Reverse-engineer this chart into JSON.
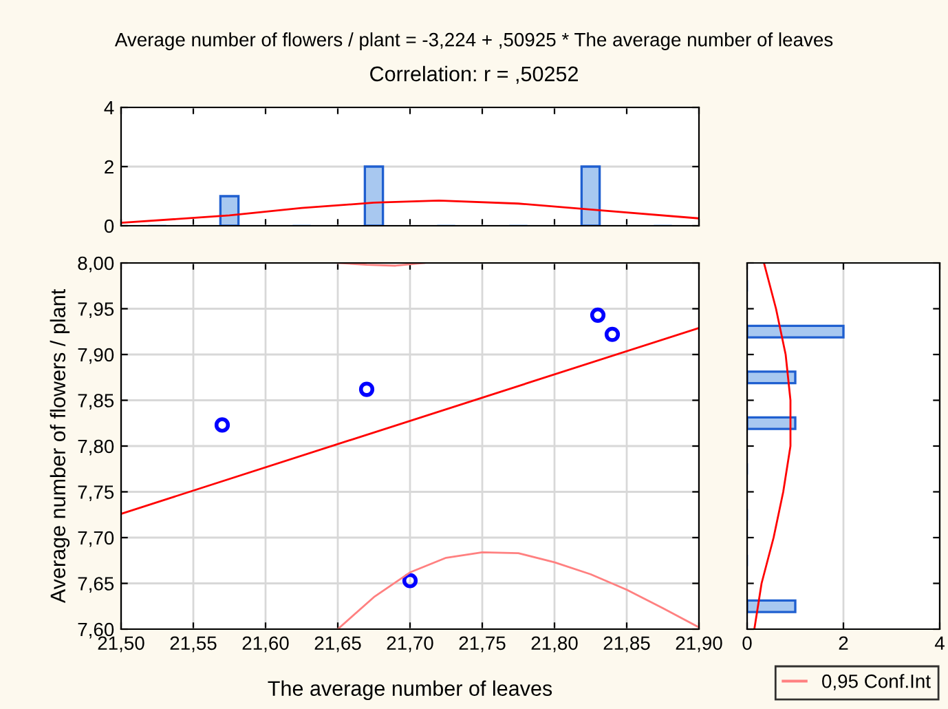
{
  "chart_data": [
    {
      "type": "histogram",
      "title": "Average number of flowers / plant = -3,224 + ,50925 * The average number of leaves",
      "subtitle": "Correlation: r = ,50252",
      "bins": [
        21.5,
        21.55,
        21.6,
        21.65,
        21.7,
        21.75,
        21.8,
        21.85,
        21.9
      ],
      "values": [
        0,
        1,
        0,
        2,
        0,
        0,
        2,
        0
      ],
      "color": "#a8c8f0",
      "series": [
        {
          "type": "line",
          "color": "#ff0000",
          "x": [
            21.5,
            21.575,
            21.625,
            21.675,
            21.72,
            21.775,
            21.825,
            21.9
          ],
          "values": [
            0.1,
            0.35,
            0.6,
            0.78,
            0.85,
            0.75,
            0.55,
            0.25
          ]
        }
      ],
      "xlim": [
        21.5,
        21.9
      ],
      "ylim": [
        0,
        4
      ],
      "yticks": [
        0,
        2,
        4
      ],
      "grid": "y",
      "tick_labels": "y"
    },
    {
      "type": "scatter",
      "xlabel": "The average number of leaves",
      "ylabel": "Average number of flowers / plant",
      "series": [
        {
          "type": "scatter",
          "color": "#0000ff",
          "marker": "circle",
          "x": [
            21.57,
            21.67,
            21.7,
            21.83,
            21.84
          ],
          "values": [
            7.823,
            7.862,
            7.653,
            7.943,
            7.922
          ]
        },
        {
          "type": "line",
          "color": "#ff0000",
          "x": [
            21.5,
            21.9
          ],
          "values": [
            7.726,
            7.929
          ]
        },
        {
          "type": "line",
          "name": "0,95 Conf.Int",
          "color": "#ff8080",
          "x": [
            21.65,
            21.675,
            21.7,
            21.725,
            21.75,
            21.775,
            21.8,
            21.825,
            21.85,
            21.875,
            21.9
          ],
          "values": [
            7.6,
            7.635,
            7.662,
            7.678,
            7.684,
            7.683,
            7.673,
            7.66,
            7.643,
            7.623,
            7.602
          ]
        },
        {
          "type": "line",
          "color": "#ff8080",
          "x": [
            21.65,
            21.67,
            21.69,
            21.71
          ],
          "values": [
            8.0,
            7.998,
            7.997,
            8.0
          ]
        }
      ],
      "xlim": [
        21.5,
        21.9
      ],
      "xticks": [
        {
          "value": 21.5,
          "label": "21,50"
        },
        {
          "value": 21.55,
          "label": "21,55"
        },
        {
          "value": 21.6,
          "label": "21,60"
        },
        {
          "value": 21.65,
          "label": "21,65"
        },
        {
          "value": 21.7,
          "label": "21,70"
        },
        {
          "value": 21.75,
          "label": "21,75"
        },
        {
          "value": 21.8,
          "label": "21,80"
        },
        {
          "value": 21.85,
          "label": "21,85"
        },
        {
          "value": 21.9,
          "label": "21,90"
        }
      ],
      "ylim": [
        7.6,
        8.0
      ],
      "yticks": [
        {
          "value": 7.6,
          "label": "7,60"
        },
        {
          "value": 7.65,
          "label": "7,65"
        },
        {
          "value": 7.7,
          "label": "7,70"
        },
        {
          "value": 7.75,
          "label": "7,75"
        },
        {
          "value": 7.8,
          "label": "7,80"
        },
        {
          "value": 7.85,
          "label": "7,85"
        },
        {
          "value": 7.9,
          "label": "7,90"
        },
        {
          "value": 7.95,
          "label": "7,95"
        },
        {
          "value": 8.0,
          "label": "8,00"
        }
      ],
      "grid": true,
      "legend": "bottom right"
    },
    {
      "type": "histogram",
      "orientation": "horizontal",
      "bins": [
        7.6,
        7.65,
        7.7,
        7.75,
        7.8,
        7.85,
        7.9,
        7.95,
        8.0
      ],
      "values": [
        1,
        0,
        0,
        0,
        1,
        1,
        2,
        0
      ],
      "color": "#a8c8f0",
      "series": [
        {
          "type": "line",
          "color": "#ff0000",
          "x": [
            7.6,
            7.65,
            7.7,
            7.75,
            7.8,
            7.85,
            7.9,
            7.95,
            8.0
          ],
          "values": [
            0.15,
            0.3,
            0.55,
            0.75,
            0.9,
            0.9,
            0.8,
            0.6,
            0.35
          ]
        }
      ],
      "ylim": [
        7.6,
        8.0
      ],
      "xlim": [
        0,
        4
      ],
      "xticks": [
        0,
        2,
        4
      ],
      "grid": "x",
      "tick_labels": "x"
    }
  ]
}
